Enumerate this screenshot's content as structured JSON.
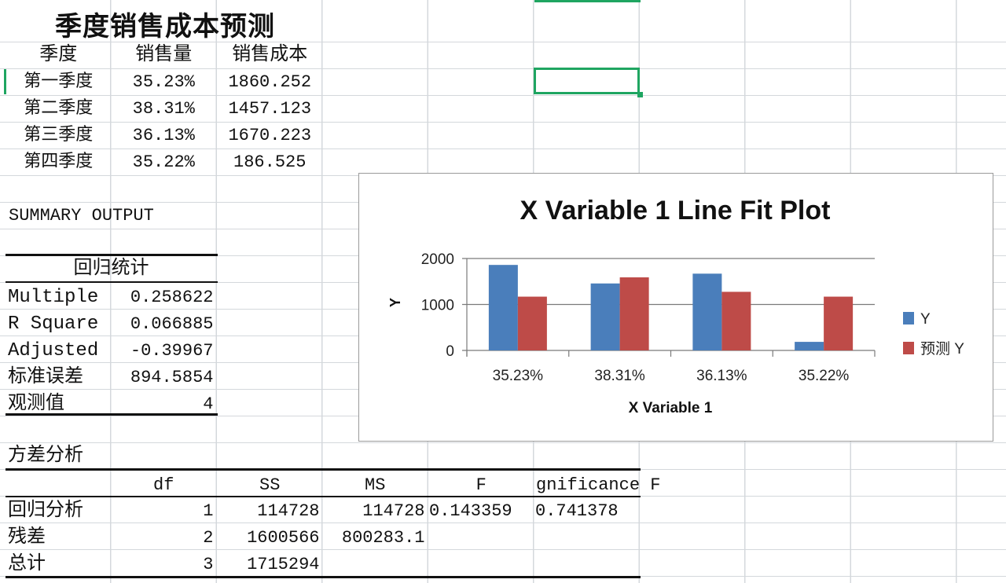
{
  "sheet": {
    "title": "季度销售成本预测",
    "headers": [
      "季度",
      "销售量",
      "销售成本"
    ],
    "rows": [
      [
        "第一季度",
        "35.23%",
        "1860.252"
      ],
      [
        "第二季度",
        "38.31%",
        "1457.123"
      ],
      [
        "第三季度",
        "36.13%",
        "1670.223"
      ],
      [
        "第四季度",
        "35.22%",
        "186.525"
      ]
    ]
  },
  "summary": {
    "title": "SUMMARY OUTPUT",
    "regression_header": "回归统计",
    "stats": [
      [
        "Multiple",
        "0.258622"
      ],
      [
        "R Square",
        "0.066885"
      ],
      [
        "Adjusted",
        "-0.39967"
      ],
      [
        "标准误差",
        "894.5854"
      ],
      [
        "观测值",
        "4"
      ]
    ]
  },
  "anova": {
    "title": "方差分析",
    "headers": [
      "",
      "df",
      "SS",
      "MS",
      "F",
      "gnificance F"
    ],
    "rows": [
      [
        "回归分析",
        "1",
        "114728",
        "114728",
        "0.143359",
        "0.741378"
      ],
      [
        "残差",
        "2",
        "1600566",
        "800283.1",
        "",
        ""
      ],
      [
        "总计",
        "3",
        "1715294",
        "",
        "",
        ""
      ]
    ]
  },
  "chart_data": {
    "type": "bar",
    "title": "X Variable 1 Line Fit  Plot",
    "xlabel": "X Variable 1",
    "ylabel": "Y",
    "categories": [
      "35.23%",
      "38.31%",
      "36.13%",
      "35.22%"
    ],
    "series": [
      {
        "name": "Y",
        "values": [
          1860.252,
          1457.123,
          1670.223,
          186.525
        ],
        "color": "#4a7ebb"
      },
      {
        "name": "预测 Y",
        "values": [
          1170,
          1590,
          1275,
          1170
        ],
        "color": "#be4b48"
      }
    ],
    "ylim": [
      0,
      2000
    ],
    "yticks": [
      "0",
      "1000",
      "2000"
    ],
    "grid": true,
    "legend": "right"
  },
  "colors": {
    "selection": "#1fa561"
  }
}
